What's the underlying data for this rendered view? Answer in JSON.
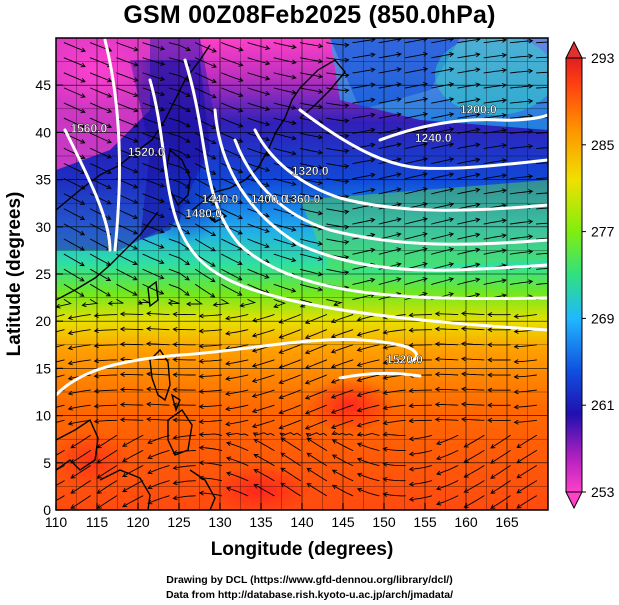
{
  "title": "GSM 00Z08Feb2025 (850.0hPa)",
  "xlabel": "Longitude (degrees)",
  "ylabel": "Latitude  (degrees)",
  "credits": [
    "Drawing by DCL (https://www.gfd-dennou.org/library/dcl/)",
    "Data from http://database.rish.kyoto-u.ac.jp/arch/jmadata/"
  ],
  "chart_data": {
    "type": "heatmap",
    "title": "GSM 00Z08Feb2025 (850.0hPa)",
    "xlabel": "Longitude (degrees)",
    "ylabel": "Latitude  (degrees)",
    "xlim": [
      110,
      170
    ],
    "ylim": [
      0,
      50
    ],
    "x_ticks": [
      110,
      115,
      120,
      125,
      130,
      135,
      140,
      145,
      150,
      155,
      160,
      165
    ],
    "y_ticks": [
      0,
      5,
      10,
      15,
      20,
      25,
      30,
      35,
      40,
      45
    ],
    "grid": true,
    "colorbar": {
      "range": [
        253,
        293
      ],
      "ticks": [
        253,
        261,
        269,
        277,
        285,
        293
      ],
      "palette": [
        "#ff44cc",
        "#b020c0",
        "#1020b0",
        "#1060e0",
        "#20c0ff",
        "#30e070",
        "#90ee10",
        "#f0e000",
        "#ff9000",
        "#ff4000",
        "#e02020"
      ]
    },
    "contour_labels": [
      {
        "text": "1200.0",
        "lon": 161.5,
        "lat": 42.0
      },
      {
        "text": "1240.0",
        "lon": 156.0,
        "lat": 39.0
      },
      {
        "text": "1320.0",
        "lon": 141.0,
        "lat": 35.5
      },
      {
        "text": "1360.0",
        "lon": 140.0,
        "lat": 32.5
      },
      {
        "text": "1400.0",
        "lon": 136.0,
        "lat": 32.5
      },
      {
        "text": "1440.0",
        "lon": 130.0,
        "lat": 32.5
      },
      {
        "text": "1480.0",
        "lon": 128.0,
        "lat": 31.0
      },
      {
        "text": "1520.0",
        "lon": 121.0,
        "lat": 37.5
      },
      {
        "text": "1560.0",
        "lon": 114.0,
        "lat": 40.0
      },
      {
        "text": "1520.0",
        "lon": 152.5,
        "lat": 15.5
      }
    ]
  }
}
